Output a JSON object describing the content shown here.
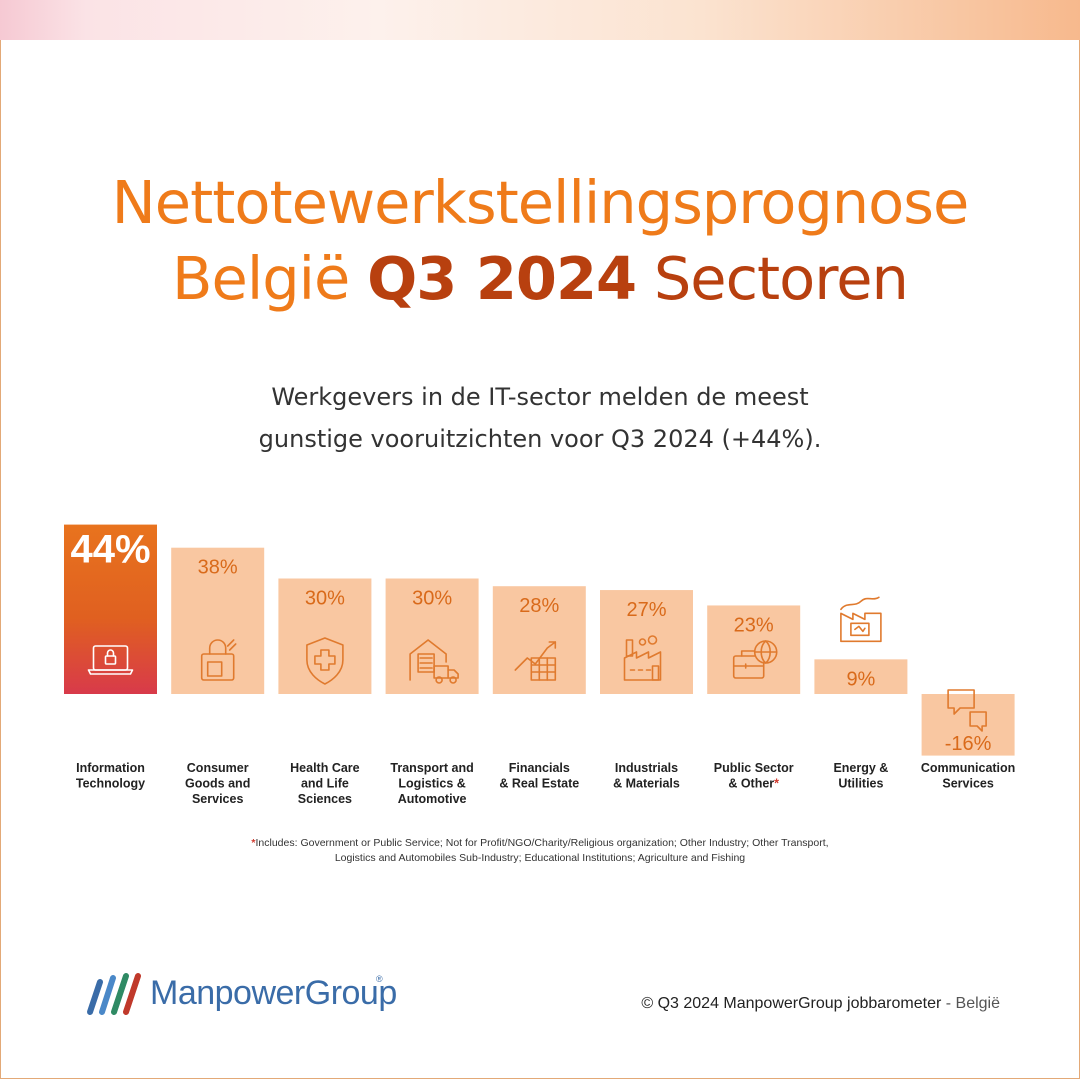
{
  "title": {
    "line1": "Nettotewerkstellingsprognose",
    "line2_part1": "België",
    "line2_part2": "Q3 2024",
    "line2_part3": "Sectoren"
  },
  "subtitle": {
    "line1": "Werkgevers in de IT-sector melden de meest",
    "line2": "gunstige vooruitzichten voor Q3 2024 (+44%)."
  },
  "chart_data": {
    "type": "bar",
    "categories": [
      "Information Technology",
      "Consumer Goods and Services",
      "Health Care and Life Sciences",
      "Transport and Logistics & Automotive",
      "Financials & Real Estate",
      "Industrials & Materials",
      "Public Sector & Other*",
      "Energy & Utilities",
      "Communication Services"
    ],
    "category_lines": [
      [
        "Information",
        "Technology"
      ],
      [
        "Consumer",
        "Goods and",
        "Services"
      ],
      [
        "Health Care",
        "and Life",
        "Sciences"
      ],
      [
        "Transport and",
        "Logistics &",
        "Automotive"
      ],
      [
        "Financials",
        "& Real Estate"
      ],
      [
        "Industrials",
        "& Materials"
      ],
      [
        "Public Sector",
        "& Other"
      ],
      [
        "Energy &",
        "Utilities"
      ],
      [
        "Communication",
        "Services"
      ]
    ],
    "values": [
      44,
      38,
      30,
      30,
      28,
      27,
      23,
      9,
      -16
    ],
    "value_labels": [
      "44%",
      "38%",
      "30%",
      "30%",
      "28%",
      "27%",
      "23%",
      "9%",
      "-16%"
    ],
    "icons": [
      "laptop-lock-icon",
      "shopping-bag-icon",
      "medical-shield-icon",
      "warehouse-truck-icon",
      "finance-chart-icon",
      "factory-icon",
      "briefcase-globe-icon",
      "energy-plant-icon",
      "chat-bubbles-icon"
    ],
    "highlight_index": 0,
    "colors": {
      "bar": "#f9c7a1",
      "highlight_top": "#e8731e",
      "highlight_bottom": "#d83a4a",
      "value_text": "#d96a1a",
      "icon": "#e07a2e"
    }
  },
  "footnote": {
    "star": "*",
    "text": "Includes: Government or Public Service; Not for Profit/NGO/Charity/Religious organization; Other Industry; Other Transport, Logistics and Automobiles Sub-Industry; Educational Institutions; Agriculture and Fishing"
  },
  "logo": {
    "text": "ManpowerGroup",
    "reg": "®"
  },
  "copyright": {
    "main": "© Q3 2024 ManpowerGroup jobbarometer",
    "country": " - België"
  }
}
